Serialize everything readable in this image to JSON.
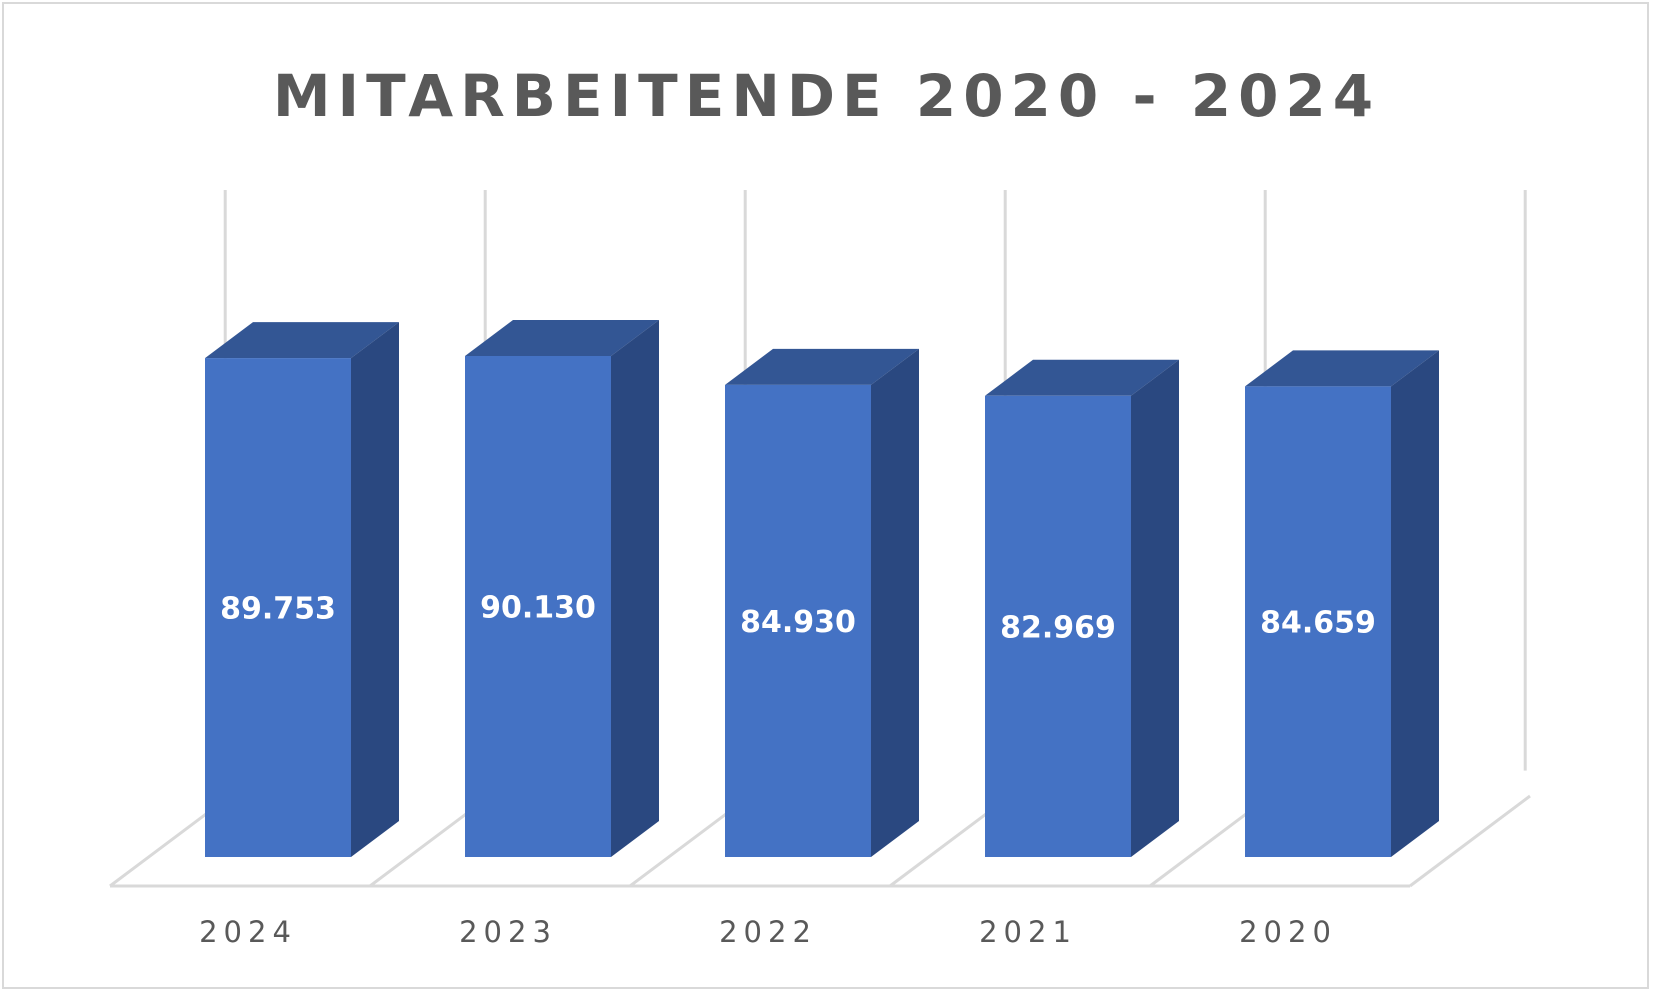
{
  "chart_data": {
    "type": "bar",
    "title": "MITARBEITENDE 2020 - 2024",
    "categories": [
      "2024",
      "2023",
      "2022",
      "2021",
      "2020"
    ],
    "values": [
      89753,
      90130,
      84930,
      82969,
      84659
    ],
    "value_labels": [
      "89.753",
      "90.130",
      "84.930",
      "82.969",
      "84.659"
    ],
    "style": "3d-column",
    "color": "#4472c4",
    "grid": true,
    "legend": "none"
  }
}
